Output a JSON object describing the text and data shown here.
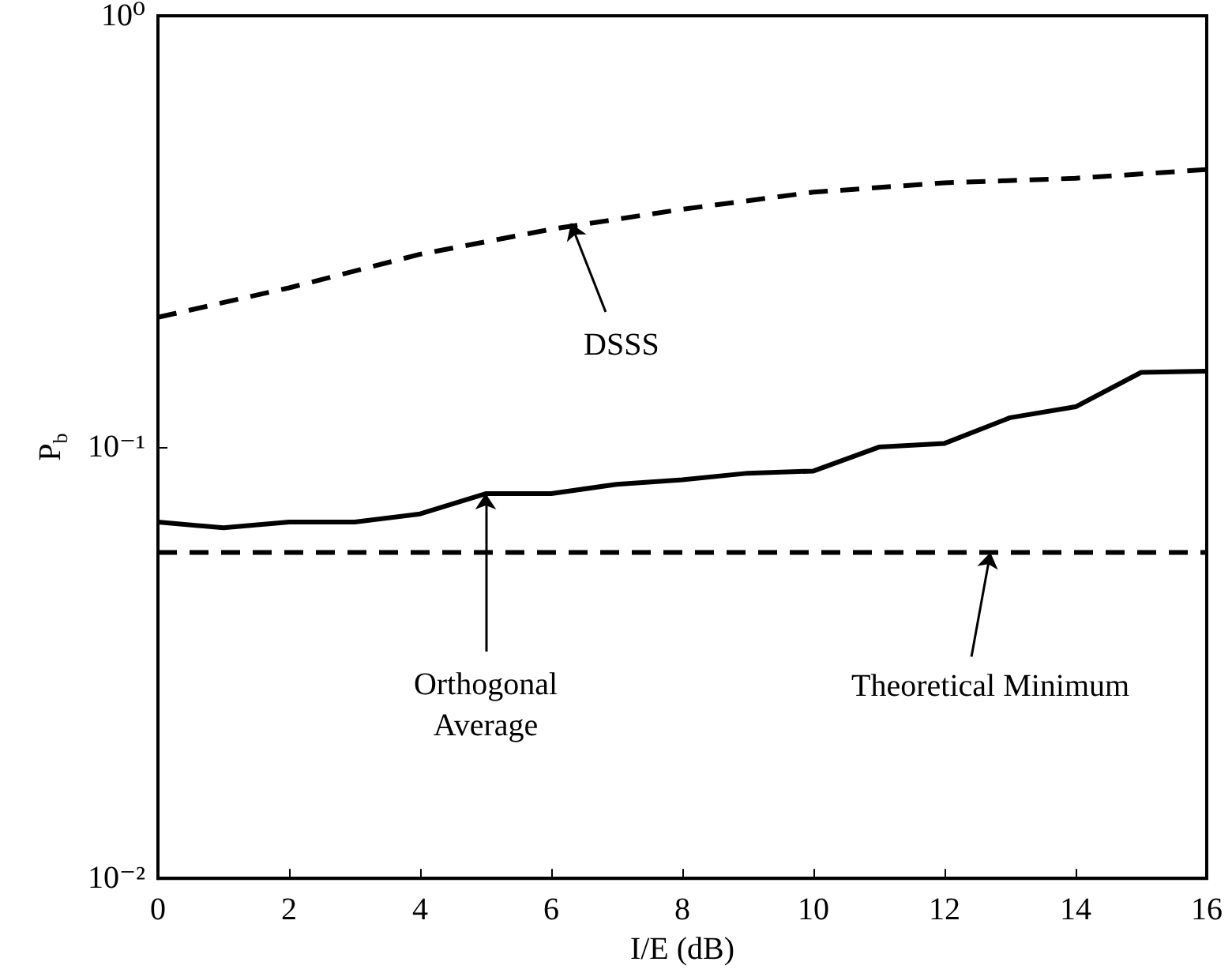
{
  "chart_data": {
    "type": "line",
    "xlabel": "I/E (dB)",
    "ylabel": "P$_{b}$",
    "log": "y",
    "grid": false,
    "marker": "none",
    "xlim": [
      0,
      16
    ],
    "xticks": [
      0,
      2,
      4,
      6,
      8,
      10,
      12,
      14,
      16
    ],
    "ylim": [
      0.01,
      1
    ],
    "yticks": [
      {
        "value": 0.01,
        "label": "10⁻²"
      },
      {
        "value": 0.1,
        "label": "10⁻¹"
      },
      {
        "value": 1,
        "label": "10⁰"
      }
    ],
    "x": [
      0,
      1,
      2,
      3,
      4,
      5,
      6,
      7,
      8,
      9,
      10,
      11,
      12,
      13,
      14,
      15,
      16
    ],
    "series": [
      {
        "color": "#000000",
        "line_style": "dashed",
        "x": [
          0,
          2,
          4,
          6,
          8,
          10,
          12,
          14,
          16
        ],
        "values": [
          0.2,
          0.234,
          0.28,
          0.32,
          0.356,
          0.39,
          0.41,
          0.42,
          0.44
        ]
      },
      {
        "color": "#000000",
        "line_style": "solid",
        "values": [
          0.067,
          0.065,
          0.067,
          0.067,
          0.07,
          0.078,
          0.078,
          0.082,
          0.084,
          0.087,
          0.088,
          0.1,
          0.102,
          0.117,
          0.124,
          0.149,
          0.15
        ]
      },
      {
        "color": "#000000",
        "line_style": "dashed",
        "x": [
          0,
          16
        ],
        "values": [
          0.057,
          0.057
        ]
      }
    ],
    "annotations": [
      {
        "text": "DSSS",
        "x": 6.3,
        "y": 0.33
      },
      {
        "text": "Orthogonal\nAverage",
        "x": 5,
        "y": 0.078
      },
      {
        "text": "Theoretical Minimum",
        "x": 12.7,
        "y": 0.057
      }
    ]
  }
}
